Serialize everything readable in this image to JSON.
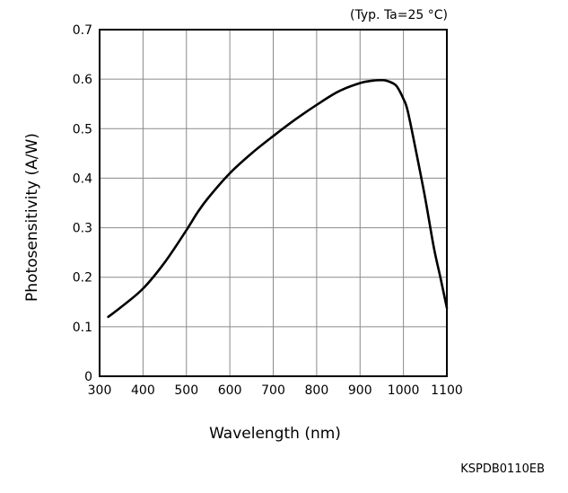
{
  "chart_data": {
    "type": "line",
    "title": "",
    "condition_note": "(Typ. Ta=25 °C)",
    "xlabel": "Wavelength (nm)",
    "ylabel": "Photosensitivity (A/W)",
    "xlim": [
      300,
      1100
    ],
    "ylim": [
      0,
      0.7
    ],
    "x_ticks": [
      "300",
      "400",
      "500",
      "600",
      "700",
      "800",
      "900",
      "1000",
      "1100"
    ],
    "y_ticks": [
      "0",
      "0.1",
      "0.2",
      "0.3",
      "0.4",
      "0.5",
      "0.6",
      "0.7"
    ],
    "grid": true,
    "series": [
      {
        "color": "#000000",
        "x": [
          320,
          350,
          400,
          450,
          500,
          525,
          550,
          600,
          650,
          700,
          750,
          800,
          850,
          900,
          930,
          950,
          960,
          975,
          985,
          1000,
          1010,
          1030,
          1050,
          1070,
          1085,
          1100
        ],
        "y": [
          0.12,
          0.14,
          0.177,
          0.23,
          0.295,
          0.33,
          0.36,
          0.41,
          0.45,
          0.485,
          0.518,
          0.548,
          0.575,
          0.592,
          0.597,
          0.598,
          0.597,
          0.592,
          0.585,
          0.56,
          0.535,
          0.45,
          0.36,
          0.26,
          0.2,
          0.138
        ]
      }
    ]
  },
  "footer": {
    "document_code": "KSPDB0110EB"
  }
}
